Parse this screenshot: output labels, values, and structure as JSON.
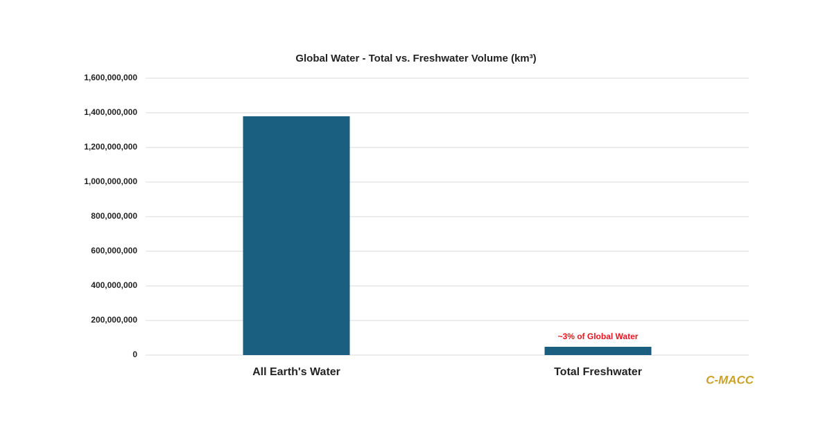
{
  "chart_data": {
    "type": "bar",
    "title": "Global Water - Total vs. Freshwater Volume (km³)",
    "categories": [
      "All Earth's Water",
      "Total Freshwater"
    ],
    "values": [
      1380000000,
      48000000
    ],
    "color": "#1a5e80",
    "ylim": [
      0,
      1600000000
    ],
    "yticks": [
      {
        "value": 0,
        "label": "0"
      },
      {
        "value": 200000000,
        "label": "200,000,000"
      },
      {
        "value": 400000000,
        "label": "400,000,000"
      },
      {
        "value": 600000000,
        "label": "600,000,000"
      },
      {
        "value": 800000000,
        "label": "800,000,000"
      },
      {
        "value": 1000000000,
        "label": "1,000,000,000"
      },
      {
        "value": 1200000000,
        "label": "1,200,000,000"
      },
      {
        "value": 1400000000,
        "label": "1,400,000,000"
      },
      {
        "value": 1600000000,
        "label": "1,600,000,000"
      }
    ],
    "grid": true,
    "annotation": "~3% of Global Water",
    "annotation_color": "#e8131f",
    "watermark": "C-MACC",
    "watermark_color": "#c9a227"
  }
}
